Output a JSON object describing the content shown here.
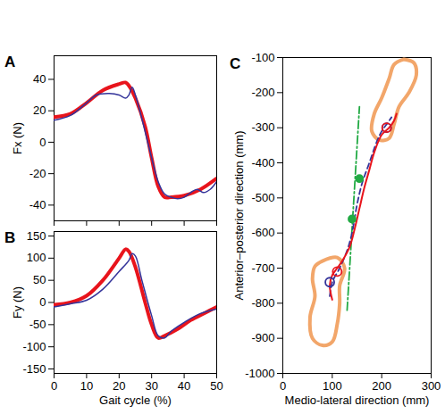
{
  "chart_data": [
    {
      "type": "line",
      "title": "A",
      "y_label": "Fx (N)",
      "xlim": [
        0,
        50
      ],
      "xticks": [
        0,
        10,
        20,
        30,
        40,
        50
      ],
      "ylim": [
        -50,
        55
      ],
      "yticks": [
        -40,
        -20,
        0,
        20,
        40
      ],
      "tick_labels": "y",
      "series": [
        {
          "color": "#e8141c",
          "line_style": "solid",
          "x": [
            0,
            5,
            10,
            15,
            20,
            22,
            23,
            25,
            28,
            30,
            32,
            34,
            36,
            40,
            45,
            50
          ],
          "values": [
            16,
            18,
            25,
            33,
            37,
            38,
            36,
            28,
            10,
            -10,
            -28,
            -35,
            -35,
            -34,
            -30,
            -23
          ]
        },
        {
          "color": "#34349a",
          "line_style": "solid",
          "x": [
            0,
            5,
            10,
            13,
            17,
            20,
            22,
            23,
            24,
            25,
            27,
            30,
            32,
            34,
            36,
            38,
            40,
            42,
            44,
            46,
            48,
            50
          ],
          "values": [
            14,
            17,
            25,
            30,
            31,
            30,
            28,
            30,
            35,
            30,
            15,
            -10,
            -25,
            -33,
            -35,
            -36,
            -35,
            -32,
            -30,
            -32,
            -30,
            -25
          ]
        }
      ]
    },
    {
      "type": "line",
      "title": "B",
      "x_label": "Gait cycle (%)",
      "y_label": "Fy (N)",
      "xlim": [
        0,
        50
      ],
      "xticks": [
        0,
        10,
        20,
        30,
        40,
        50
      ],
      "ylim": [
        -160,
        160
      ],
      "yticks": [
        -150,
        -100,
        -50,
        0,
        50,
        100,
        150
      ],
      "series": [
        {
          "color": "#e8141c",
          "line_style": "solid",
          "x": [
            0,
            5,
            10,
            15,
            20,
            22,
            23,
            25,
            28,
            30,
            32,
            34,
            38,
            42,
            46,
            50
          ],
          "values": [
            -5,
            0,
            15,
            50,
            100,
            120,
            115,
            80,
            0,
            -50,
            -80,
            -75,
            -60,
            -40,
            -25,
            -10
          ]
        },
        {
          "color": "#34349a",
          "line_style": "solid",
          "x": [
            0,
            5,
            10,
            15,
            20,
            23,
            24,
            25,
            27,
            30,
            32,
            34,
            36,
            40,
            45,
            50
          ],
          "values": [
            -10,
            -3,
            5,
            30,
            70,
            95,
            110,
            105,
            50,
            -30,
            -75,
            -80,
            -65,
            -45,
            -25,
            -15
          ]
        }
      ]
    },
    {
      "type": "line",
      "title": "C",
      "x_label": "Medio-lateral direction (mm)",
      "y_label": "Anterior–posterior direction (mm)",
      "xlim": [
        0,
        300
      ],
      "xticks": [
        0,
        100,
        200,
        300
      ],
      "ylim": [
        -1000,
        -100
      ],
      "yticks": [
        -1000,
        -900,
        -800,
        -700,
        -600,
        -500,
        -400,
        -300,
        -200,
        -100
      ],
      "series": [
        {
          "type": "line",
          "color": "#f2a66a",
          "line_style": "solid",
          "x": [
            245,
            265,
            270,
            255,
            235,
            225,
            215,
            195,
            180,
            185,
            200,
            215,
            225,
            245
          ],
          "values": [
            -105,
            -115,
            -150,
            -200,
            -240,
            -290,
            -330,
            -335,
            -310,
            -260,
            -215,
            -160,
            -120,
            -105
          ]
        },
        {
          "type": "line",
          "color": "#f2a66a",
          "line_style": "solid",
          "x": [
            80,
            110,
            125,
            115,
            115,
            110,
            100,
            80,
            60,
            55,
            65,
            60,
            65,
            80
          ],
          "values": [
            -680,
            -670,
            -700,
            -750,
            -800,
            -860,
            -910,
            -920,
            -900,
            -840,
            -780,
            -730,
            -695,
            -680
          ]
        },
        {
          "type": "line",
          "color": "#22aa44",
          "line_style": "dashdot",
          "x": [
            130,
            155
          ],
          "values": [
            -820,
            -240
          ]
        },
        {
          "type": "line",
          "color": "#34349a",
          "line_style": "dashed",
          "x": [
            95,
            100,
            115,
            130,
            140,
            150,
            160,
            175,
            190,
            200,
            210,
            220
          ],
          "values": [
            -780,
            -740,
            -700,
            -650,
            -600,
            -520,
            -460,
            -400,
            -340,
            -310,
            -290,
            -270
          ]
        },
        {
          "type": "line",
          "color": "#e8141c",
          "line_style": "solid",
          "x": [
            100,
            95,
            100,
            110,
            120,
            135,
            145,
            155,
            165,
            175,
            185,
            200,
            215,
            225,
            230
          ],
          "values": [
            -790,
            -750,
            -720,
            -700,
            -680,
            -640,
            -590,
            -530,
            -470,
            -420,
            -370,
            -320,
            -300,
            -280,
            -260
          ]
        },
        {
          "type": "scatter",
          "color": "#22aa44",
          "marker": "dot",
          "x": [
            140,
            155
          ],
          "values": [
            -560,
            -445
          ]
        },
        {
          "type": "scatter",
          "color": "#34349a",
          "marker": "circle",
          "x": [
            95,
            210
          ],
          "values": [
            -740,
            -300
          ]
        },
        {
          "type": "scatter",
          "color": "#e8141c",
          "marker": "circle",
          "x": [
            110,
            210
          ],
          "values": [
            -710,
            -300
          ]
        }
      ]
    }
  ]
}
